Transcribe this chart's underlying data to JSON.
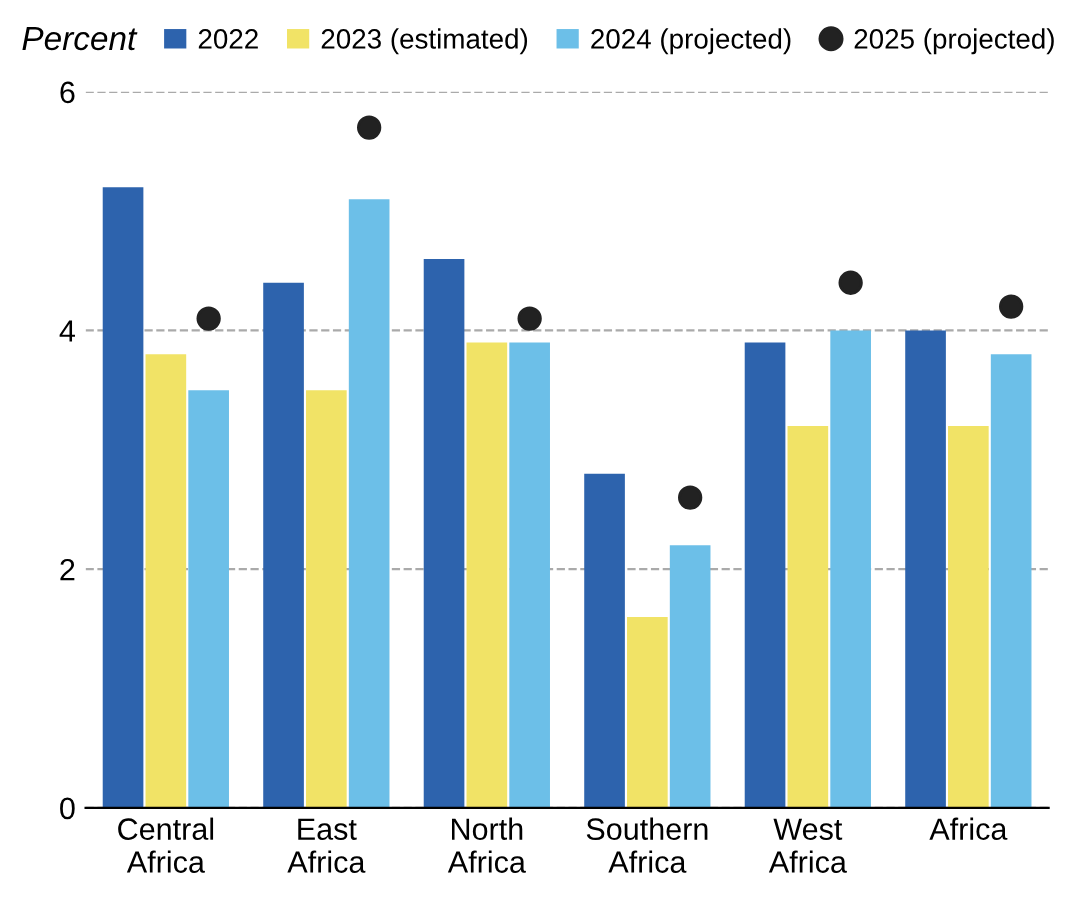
{
  "chart_data": {
    "type": "bar",
    "ylabel": "Percent",
    "categories": [
      "Central Africa",
      "East Africa",
      "North Africa",
      "Southern Africa",
      "West Africa",
      "Africa"
    ],
    "series": [
      {
        "name": "2022",
        "color": "#2d63ad",
        "values": [
          5.2,
          4.4,
          4.6,
          2.8,
          3.9,
          4.0
        ]
      },
      {
        "name": "2023 (estimated)",
        "color": "#f1e366",
        "values": [
          3.8,
          3.5,
          3.9,
          1.6,
          3.2,
          3.2
        ]
      },
      {
        "name": "2024 (projected)",
        "color": "#6cbfe8",
        "values": [
          3.5,
          5.1,
          3.9,
          2.2,
          4.0,
          3.8
        ]
      },
      {
        "name": "2025 (projected)",
        "color": "#222222",
        "type": "scatter",
        "marker": "circle",
        "values": [
          4.1,
          5.7,
          4.1,
          2.6,
          4.4,
          4.2
        ]
      }
    ],
    "ylim": [
      0,
      6
    ],
    "yticks": [
      0,
      2,
      4,
      6
    ],
    "grid": "y",
    "legend": "top"
  }
}
